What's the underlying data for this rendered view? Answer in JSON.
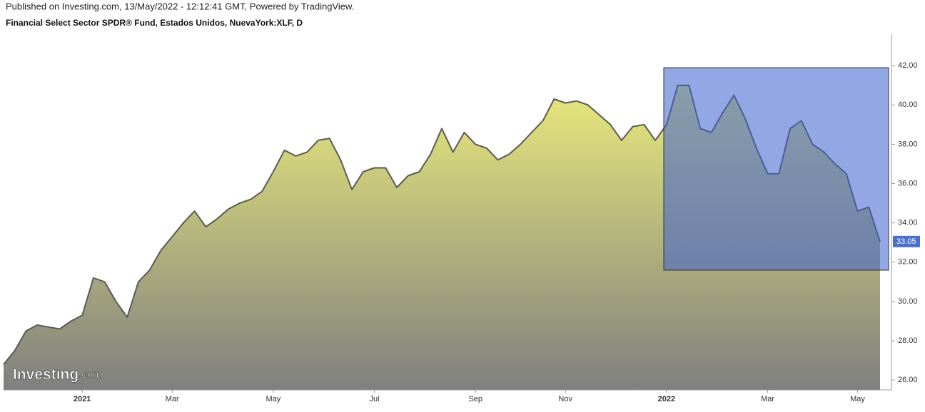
{
  "header": {
    "published": "Published on Investing.com, 13/May/2022 - 12:12:41 GMT, Powered by TradingView."
  },
  "logo": {
    "brand": "Investing",
    "suffix": ".com"
  },
  "chart_data": {
    "type": "area",
    "title": "Financial Select Sector SPDR® Fund, Estados Unidos, NuevaYork:XLF, D",
    "categories": [
      null,
      null,
      null,
      null,
      null,
      null,
      null,
      "2021",
      null,
      null,
      null,
      null,
      null,
      null,
      null,
      "Mar",
      null,
      null,
      null,
      null,
      null,
      null,
      null,
      null,
      "May",
      null,
      null,
      null,
      null,
      null,
      null,
      null,
      null,
      "Jul",
      null,
      null,
      null,
      null,
      null,
      null,
      null,
      null,
      "Sep",
      null,
      null,
      null,
      null,
      null,
      null,
      null,
      "Nov",
      null,
      null,
      null,
      null,
      null,
      null,
      null,
      null,
      "2022",
      null,
      null,
      null,
      null,
      null,
      null,
      null,
      null,
      "Mar",
      null,
      null,
      null,
      null,
      null,
      null,
      null,
      "May",
      null,
      null
    ],
    "values": [
      26.8,
      27.5,
      28.5,
      28.8,
      28.7,
      28.6,
      29.0,
      29.3,
      31.2,
      31.0,
      30.0,
      29.2,
      31.0,
      31.6,
      32.6,
      33.3,
      34.0,
      34.6,
      33.8,
      34.2,
      34.7,
      35.0,
      35.2,
      35.6,
      36.6,
      37.7,
      37.4,
      37.6,
      38.2,
      38.3,
      37.2,
      35.7,
      36.6,
      36.8,
      36.8,
      35.8,
      36.4,
      36.6,
      37.5,
      38.8,
      37.6,
      38.6,
      38.0,
      37.8,
      37.2,
      37.5,
      38.0,
      38.6,
      39.2,
      40.3,
      40.1,
      40.2,
      40.0,
      39.5,
      39.0,
      38.2,
      38.9,
      39.0,
      38.2,
      39.0,
      41.0,
      41.0,
      38.8,
      38.6,
      39.6,
      40.5,
      39.3,
      37.8,
      36.5,
      36.5,
      38.8,
      39.2,
      38.0,
      37.6,
      37.0,
      36.5,
      34.6,
      34.8,
      33.05
    ],
    "line_color": "#5a5a5a",
    "fill_top": "#e9e97c",
    "fill_bottom": "#7f7f7f",
    "ylim": [
      25.5,
      43.6
    ],
    "yticks": [
      {
        "value": 26,
        "label": "26.00"
      },
      {
        "value": 28,
        "label": "28.00"
      },
      {
        "value": 30,
        "label": "30.00"
      },
      {
        "value": 32,
        "label": "32.00"
      },
      {
        "value": 34,
        "label": "34.00"
      },
      {
        "value": 36,
        "label": "36.00"
      },
      {
        "value": 38,
        "label": "38.00"
      },
      {
        "value": 40,
        "label": "40.00"
      },
      {
        "value": 42,
        "label": "42.00"
      }
    ],
    "grid": false
  }
}
